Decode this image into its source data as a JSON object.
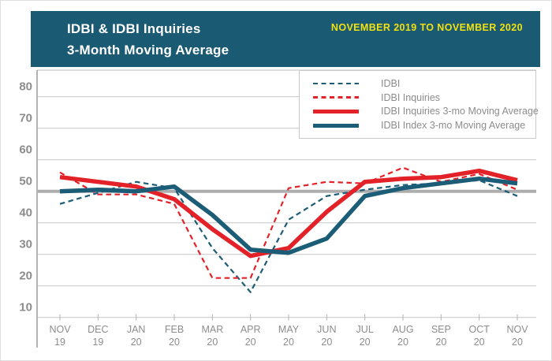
{
  "header": {
    "title_line1": "IDBI & IDBI Inquiries",
    "title_line2": "3-Month Moving Average",
    "date_range": "NOVEMBER 2019 TO NOVEMBER 2020"
  },
  "colors": {
    "teal": "#1B5C76",
    "red": "#E32128",
    "yellow": "#F1E111",
    "header_bg": "#1A5A73",
    "grid": "#CCCCCC",
    "grid_emphasis": "#ADADAD",
    "axis_line": "#B3B3B3",
    "axis_text": "#8C8C8C",
    "legend_border": "#C9C9C9"
  },
  "legend": {
    "items": [
      {
        "label": "IDBI",
        "style": "dashed",
        "color_key": "teal"
      },
      {
        "label": "IDBI Inquiries",
        "style": "dashed",
        "color_key": "red"
      },
      {
        "label": "IDBI Inquiries 3-mo Moving Average",
        "style": "solid",
        "color_key": "red"
      },
      {
        "label": "IDBI Index 3-mo Moving Average",
        "style": "solid",
        "color_key": "teal"
      }
    ]
  },
  "chart_data": {
    "type": "line",
    "title": "IDBI & IDBI Inquiries 3-Month Moving Average",
    "subtitle": "NOVEMBER 2019 TO NOVEMBER 2020",
    "categories": [
      [
        "NOV",
        "19"
      ],
      [
        "DEC",
        "19"
      ],
      [
        "JAN",
        "20"
      ],
      [
        "FEB",
        "20"
      ],
      [
        "MAR",
        "20"
      ],
      [
        "APR",
        "20"
      ],
      [
        "MAY",
        "20"
      ],
      [
        "JUN",
        "20"
      ],
      [
        "JUL",
        "20"
      ],
      [
        "AUG",
        "20"
      ],
      [
        "SEP",
        "20"
      ],
      [
        "OCT",
        "20"
      ],
      [
        "NOV",
        "20"
      ]
    ],
    "y_ticks": [
      80,
      70,
      60,
      50,
      40,
      30,
      20,
      10
    ],
    "ylim": [
      10,
      88
    ],
    "emphasis_line": 50,
    "grid": "horizontal",
    "legend_position": "top-right",
    "series": [
      {
        "name": "IDBI",
        "style": "dashed",
        "color_key": "teal",
        "values": [
          46,
          49.5,
          53,
          51,
          32,
          18,
          41,
          48.5,
          50.5,
          52,
          52.5,
          53.5,
          48.5
        ]
      },
      {
        "name": "IDBI Inquiries",
        "style": "dashed",
        "color_key": "red",
        "values": [
          56,
          49,
          49,
          46,
          22.5,
          22.5,
          51,
          53,
          52.5,
          57.5,
          53,
          55.5,
          50.5
        ]
      },
      {
        "name": "IDBI Inquiries 3-mo Moving Average",
        "style": "solid",
        "color_key": "red",
        "values": [
          54.5,
          53,
          51.5,
          47.5,
          38,
          29.5,
          32,
          43.5,
          53,
          54,
          54.5,
          56.5,
          53.5
        ]
      },
      {
        "name": "IDBI Index 3-mo Moving Average",
        "style": "solid",
        "color_key": "teal",
        "values": [
          50,
          50.5,
          50,
          51.5,
          42.5,
          31.5,
          30.5,
          35,
          48.5,
          51,
          52.5,
          54,
          52.5
        ]
      }
    ]
  }
}
